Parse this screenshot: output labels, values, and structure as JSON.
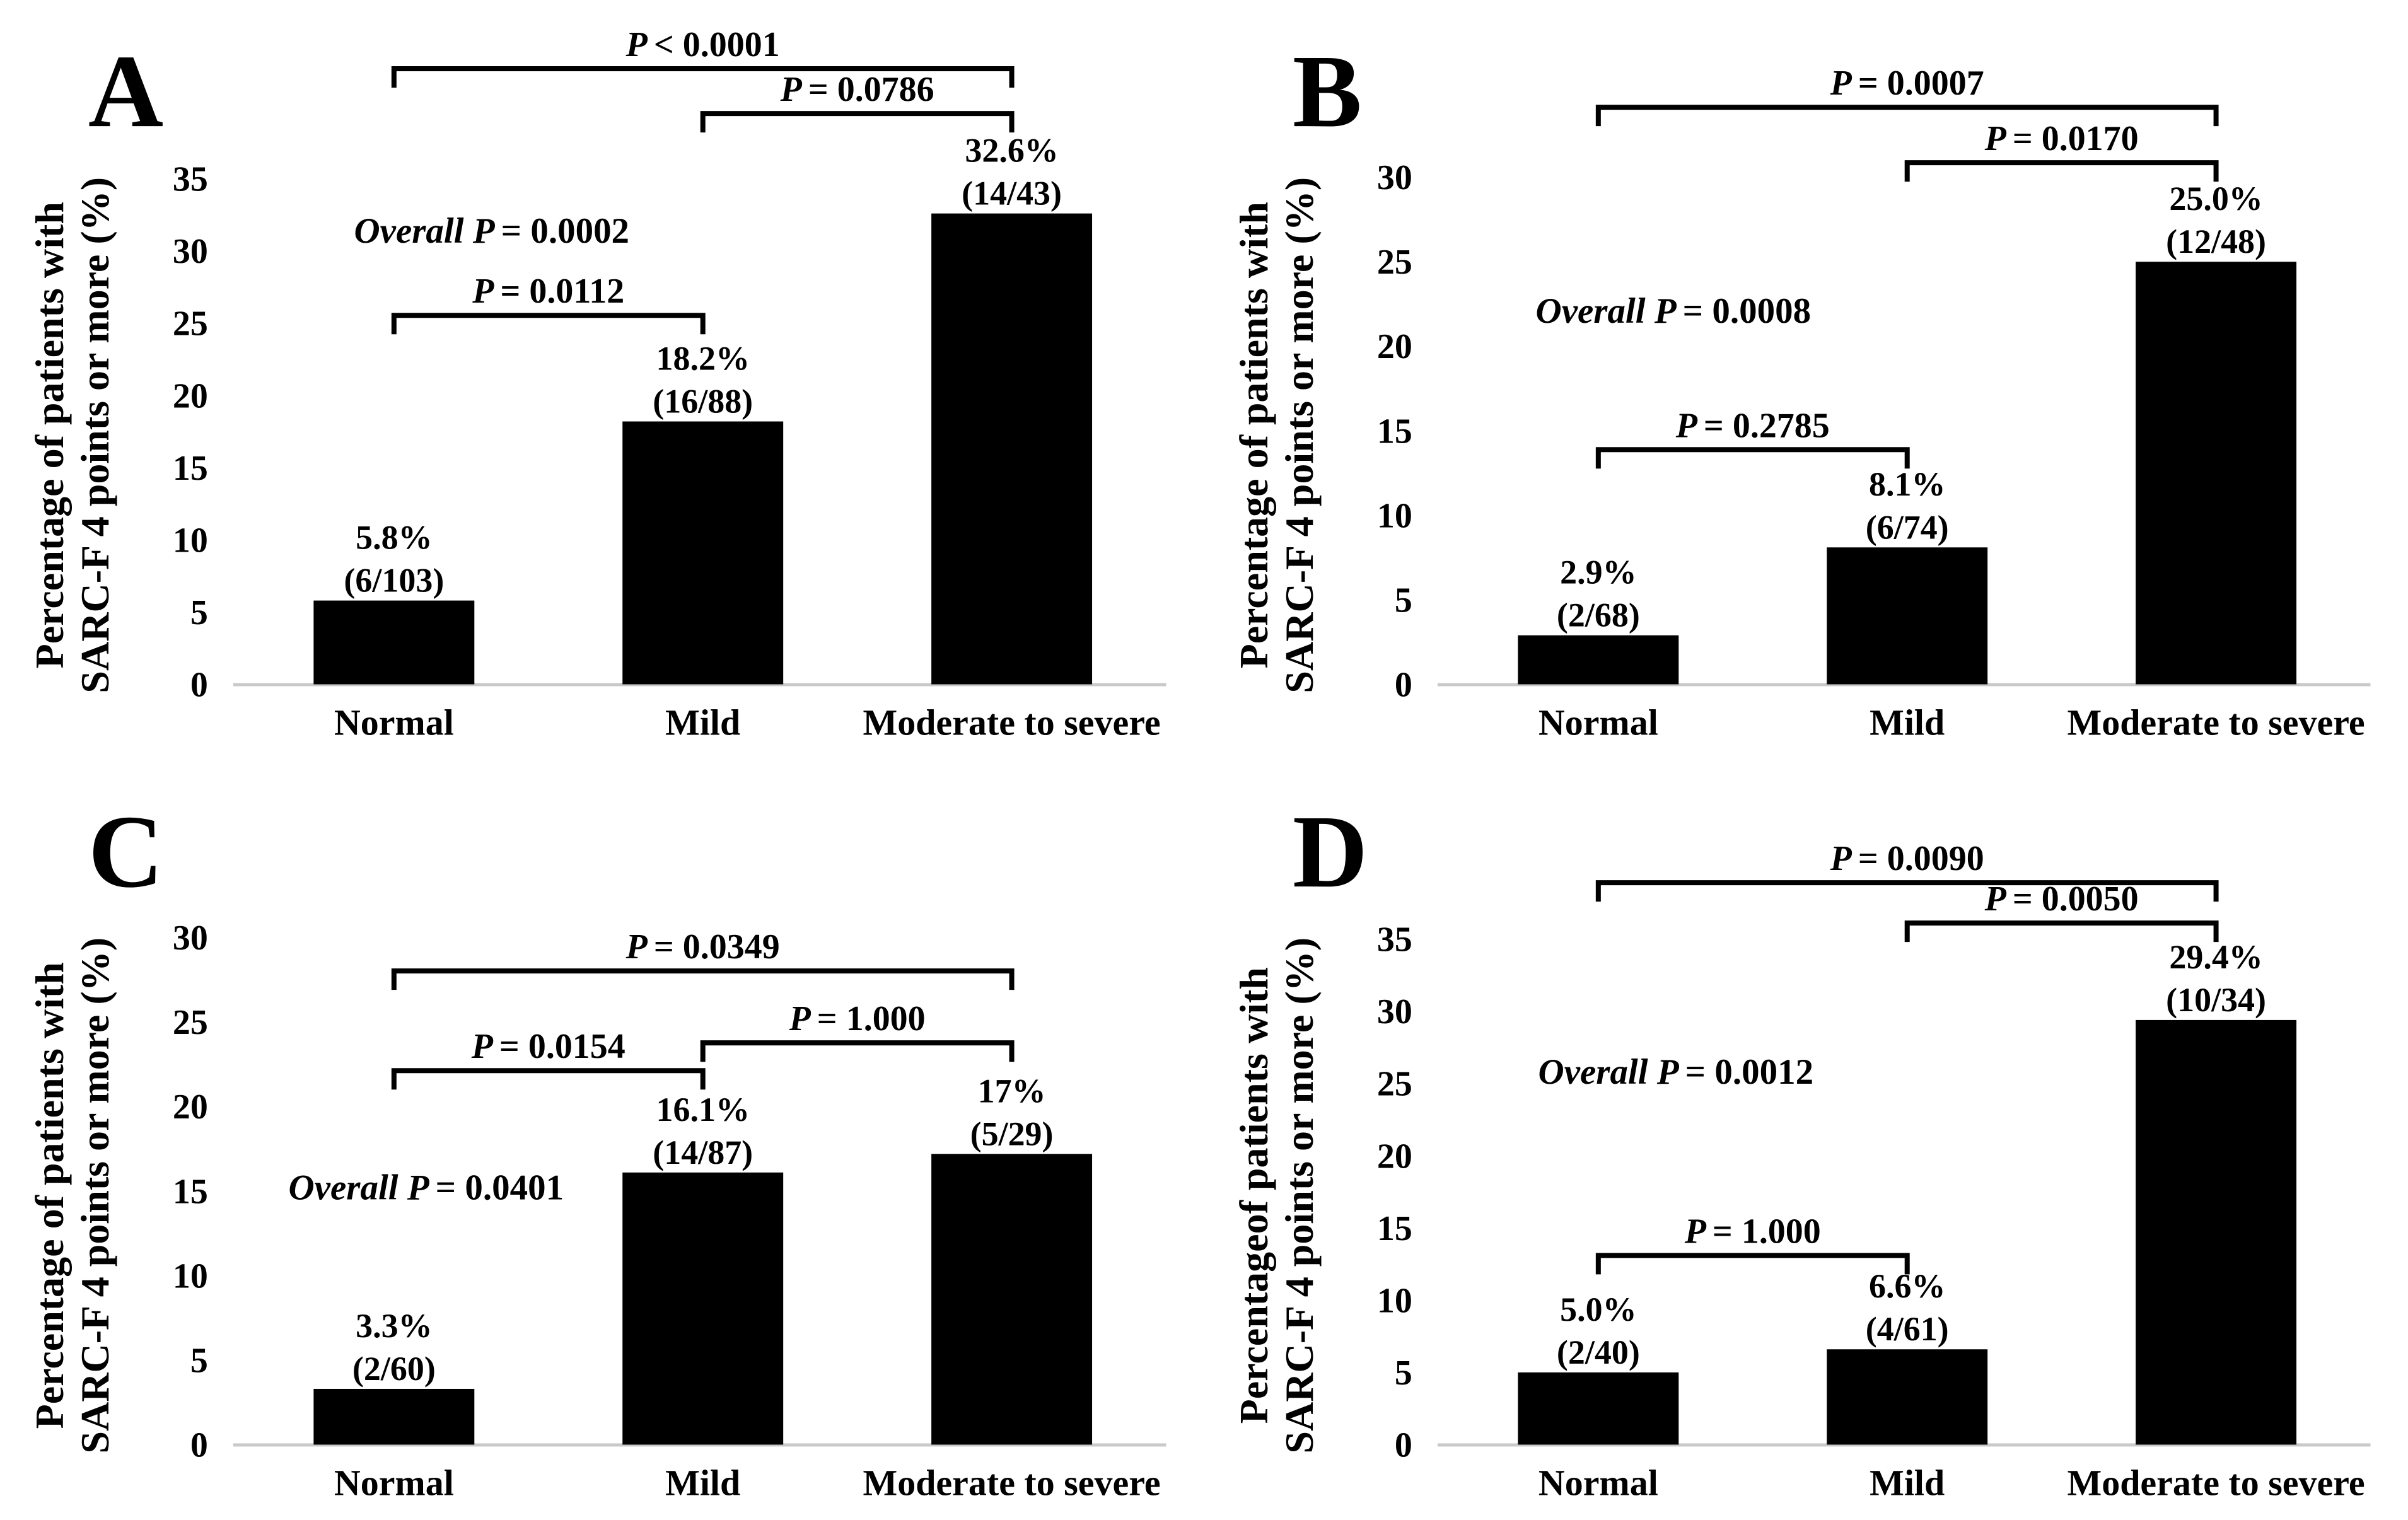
{
  "figure": {
    "background": "#ffffff",
    "bar_color": "#000000",
    "axis_color": "#c9c9c9",
    "text_color": "#000000"
  },
  "chart_data": [
    {
      "panel": "A",
      "type": "bar",
      "ylabel_lines": [
        "Percentage of patients with",
        "SARC-F 4 points or more (%)"
      ],
      "categories": [
        "Normal",
        "Mild",
        "Moderate to severe"
      ],
      "values": [
        5.8,
        18.2,
        32.6
      ],
      "bar_labels": [
        [
          "5.8%",
          "(6/103)"
        ],
        [
          "18.2%",
          "(16/88)"
        ],
        [
          "32.6%",
          "(14/43)"
        ]
      ],
      "yticks": [
        0,
        5,
        10,
        15,
        20,
        25,
        30,
        35
      ],
      "ylim": [
        0,
        35
      ],
      "grid": false,
      "overall_p": "Overall P = 0.0002",
      "comparisons": [
        {
          "pair": [
            0,
            2
          ],
          "label": "P < 0.0001"
        },
        {
          "pair": [
            1,
            2
          ],
          "label": "P = 0.0786"
        },
        {
          "pair": [
            0,
            1
          ],
          "label": "P = 0.0112"
        }
      ]
    },
    {
      "panel": "B",
      "type": "bar",
      "ylabel_lines": [
        "Percentage of patients with",
        "SARC-F 4 points or more (%)"
      ],
      "categories": [
        "Normal",
        "Mild",
        "Moderate to severe"
      ],
      "values": [
        2.9,
        8.1,
        25.0
      ],
      "bar_labels": [
        [
          "2.9%",
          "(2/68)"
        ],
        [
          "8.1%",
          "(6/74)"
        ],
        [
          "25.0%",
          "(12/48)"
        ]
      ],
      "yticks": [
        0,
        5,
        10,
        15,
        20,
        25,
        30
      ],
      "ylim": [
        0,
        30
      ],
      "grid": false,
      "overall_p": "Overall P = 0.0008",
      "comparisons": [
        {
          "pair": [
            0,
            2
          ],
          "label": "P = 0.0007"
        },
        {
          "pair": [
            1,
            2
          ],
          "label": "P = 0.0170"
        },
        {
          "pair": [
            0,
            1
          ],
          "label": "P = 0.2785"
        }
      ]
    },
    {
      "panel": "C",
      "type": "bar",
      "ylabel_lines": [
        "Percentage of patients with",
        "SARC-F 4 points or more (%)"
      ],
      "categories": [
        "Normal",
        "Mild",
        "Moderate to severe"
      ],
      "values": [
        3.3,
        16.1,
        17.2
      ],
      "bar_labels": [
        [
          "3.3%",
          "(2/60)"
        ],
        [
          "16.1%",
          "(14/87)"
        ],
        [
          "17%",
          "(5/29)"
        ]
      ],
      "yticks": [
        0,
        5,
        10,
        15,
        20,
        25,
        30
      ],
      "ylim": [
        0,
        30
      ],
      "grid": false,
      "overall_p": "Overall P = 0.0401",
      "comparisons": [
        {
          "pair": [
            0,
            2
          ],
          "label": "P = 0.0349"
        },
        {
          "pair": [
            1,
            2
          ],
          "label": "P = 1.000"
        },
        {
          "pair": [
            0,
            1
          ],
          "label": "P = 0.0154"
        }
      ]
    },
    {
      "panel": "D",
      "type": "bar",
      "ylabel_lines": [
        "Percentageof patients with",
        "SARC-F 4 points or more (%)"
      ],
      "categories": [
        "Normal",
        "Mild",
        "Moderate to severe"
      ],
      "values": [
        5.0,
        6.6,
        29.4
      ],
      "bar_labels": [
        [
          "5.0%",
          "(2/40)"
        ],
        [
          "6.6%",
          "(4/61)"
        ],
        [
          "29.4%",
          "(10/34)"
        ]
      ],
      "yticks": [
        0,
        5,
        10,
        15,
        20,
        25,
        30,
        35
      ],
      "ylim": [
        0,
        35
      ],
      "grid": false,
      "overall_p": "Overall P = 0.0012",
      "comparisons": [
        {
          "pair": [
            0,
            2
          ],
          "label": "P = 0.0090"
        },
        {
          "pair": [
            1,
            2
          ],
          "label": "P = 0.0050"
        },
        {
          "pair": [
            0,
            1
          ],
          "label": "P = 1.000"
        }
      ]
    }
  ]
}
